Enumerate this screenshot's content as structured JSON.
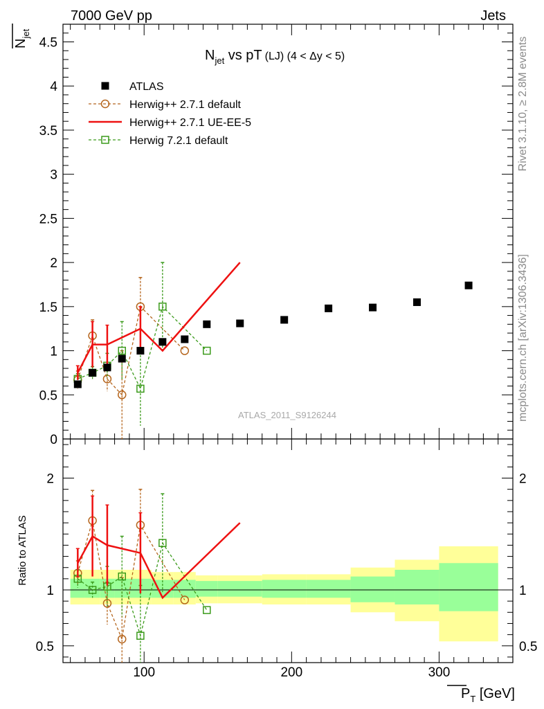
{
  "header": {
    "energy_label": "7000 GeV pp",
    "process_label": "Jets",
    "watermark": "ATLAS_2011_S9126244",
    "side_top": "Rivet 3.1.10, ≥ 2.8M events",
    "side_bottom": "mcplots.cern.ch [arXiv:1306.3436]"
  },
  "chart_data": [
    {
      "type": "scatter",
      "panel": "main",
      "title_main": "N",
      "title_sub": "jet",
      "title_rest": " vs pT",
      "title_small": "(LJ) (4 < Δy < 5)",
      "ylabel_main": "N",
      "ylabel_sub": "jet",
      "xlabel_main": "P",
      "xlabel_sub": "T",
      "xlabel_unit": " [GeV]",
      "xlim": [
        45,
        350
      ],
      "ylim": [
        0,
        4.7
      ],
      "yticks": [
        0,
        0.5,
        1,
        1.5,
        2,
        2.5,
        3,
        3.5,
        4,
        4.5
      ],
      "yticklabels": [
        "0",
        "0.5",
        "1",
        "1.5",
        "2",
        "2.5",
        "3",
        "3.5",
        "4",
        "4.5"
      ],
      "xticks": [
        100,
        200,
        300
      ],
      "xticklabels": [
        "100",
        "200",
        "300"
      ],
      "legend": {
        "position": "top-left",
        "entries": [
          {
            "label": "ATLAS",
            "series": "atlas"
          },
          {
            "label": "Herwig++ 2.7.1 default",
            "series": "hpp_default"
          },
          {
            "label": "Herwig++ 2.7.1 UE-EE-5",
            "series": "hpp_ue"
          },
          {
            "label": "Herwig 7.2.1 default",
            "series": "h7_default"
          }
        ]
      },
      "series": [
        {
          "id": "atlas",
          "name": "ATLAS",
          "color": "#000000",
          "marker": "filled-square",
          "style": "markers",
          "x": [
            55,
            65,
            75,
            85,
            97.5,
            112.5,
            127.5,
            142.5,
            165,
            195,
            225,
            255,
            285,
            320
          ],
          "y": [
            0.62,
            0.75,
            0.81,
            0.91,
            1.0,
            1.1,
            1.13,
            1.3,
            1.31,
            1.35,
            1.48,
            1.49,
            1.55,
            1.74
          ]
        },
        {
          "id": "hpp_default",
          "name": "Herwig++ 2.7.1 default",
          "color": "#b5651d",
          "marker": "open-circle",
          "style": "dashed",
          "x": [
            55,
            65,
            75,
            85,
            97.5,
            127.5
          ],
          "y": [
            0.67,
            1.17,
            0.68,
            0.5,
            1.5,
            1.0
          ],
          "err": [
            0.1,
            0.18,
            0.14,
            0.5,
            0.33,
            0
          ]
        },
        {
          "id": "hpp_ue",
          "name": "Herwig++ 2.7.1 UE-EE-5",
          "color": "#ee1111",
          "marker": "none",
          "style": "solid",
          "x": [
            55,
            65,
            75,
            97.5,
            112.5,
            165
          ],
          "y": [
            0.75,
            1.07,
            1.07,
            1.25,
            1.0,
            2.0
          ],
          "err": [
            0.08,
            0.26,
            0.22,
            0.25,
            0,
            0
          ]
        },
        {
          "id": "h7_default",
          "name": "Herwig 7.2.1 default",
          "color": "#3a9a1a",
          "marker": "open-square",
          "style": "dashed",
          "x": [
            55,
            65,
            75,
            85,
            97.5,
            112.5,
            142.5
          ],
          "y": [
            0.68,
            0.75,
            0.83,
            1.0,
            0.57,
            1.5,
            1.0
          ],
          "err": [
            0.06,
            0.07,
            0.14,
            0.33,
            0.42,
            0.5,
            0
          ]
        }
      ]
    },
    {
      "type": "line",
      "panel": "ratio",
      "ylabel": "Ratio to ATLAS",
      "xlim": [
        45,
        350
      ],
      "ylim": [
        0.35,
        2.35
      ],
      "yticks": [
        0.5,
        1,
        2
      ],
      "yticklabels": [
        "0.5",
        "1",
        "2"
      ],
      "bands": {
        "edges": [
          50,
          60,
          70,
          80,
          90,
          105,
          120,
          135,
          150,
          180,
          210,
          240,
          270,
          300,
          340
        ],
        "outer_color": "#ffff99",
        "inner_color": "#99ff99",
        "outer_lo": [
          0.87,
          0.87,
          0.87,
          0.87,
          0.87,
          0.87,
          0.87,
          0.88,
          0.88,
          0.87,
          0.87,
          0.8,
          0.72,
          0.54
        ],
        "outer_hi": [
          1.18,
          1.18,
          1.18,
          1.18,
          1.18,
          1.16,
          1.16,
          1.13,
          1.13,
          1.14,
          1.14,
          1.2,
          1.27,
          1.39
        ],
        "inner_lo": [
          0.93,
          0.93,
          0.93,
          0.93,
          0.93,
          0.93,
          0.93,
          0.94,
          0.94,
          0.93,
          0.93,
          0.89,
          0.87,
          0.81
        ],
        "inner_hi": [
          1.1,
          1.1,
          1.1,
          1.1,
          1.1,
          1.09,
          1.09,
          1.08,
          1.08,
          1.09,
          1.09,
          1.12,
          1.18,
          1.24
        ]
      },
      "series": [
        {
          "id": "hpp_default",
          "color": "#b5651d",
          "marker": "open-circle",
          "style": "dashed",
          "x": [
            55,
            65,
            75,
            85,
            97.5,
            127.5
          ],
          "y": [
            1.15,
            1.62,
            0.88,
            0.56,
            1.58,
            0.91
          ],
          "err": [
            0.11,
            0.27,
            0.19,
            0.55,
            0.32,
            0
          ]
        },
        {
          "id": "hpp_ue",
          "color": "#ee1111",
          "marker": "none",
          "style": "solid",
          "x": [
            55,
            65,
            75,
            97.5,
            112.5,
            165
          ],
          "y": [
            1.24,
            1.48,
            1.4,
            1.33,
            0.93,
            1.6
          ],
          "err": [
            0.13,
            0.36,
            0.36,
            0.36,
            0,
            0
          ]
        },
        {
          "id": "h7_default",
          "color": "#3a9a1a",
          "marker": "open-square",
          "style": "dashed",
          "x": [
            55,
            65,
            75,
            85,
            97.5,
            112.5,
            142.5
          ],
          "y": [
            1.1,
            1.0,
            1.03,
            1.12,
            0.59,
            1.42,
            0.82
          ],
          "err": [
            0.08,
            0.07,
            0.18,
            0.36,
            0.45,
            0.44,
            0
          ]
        }
      ]
    }
  ]
}
